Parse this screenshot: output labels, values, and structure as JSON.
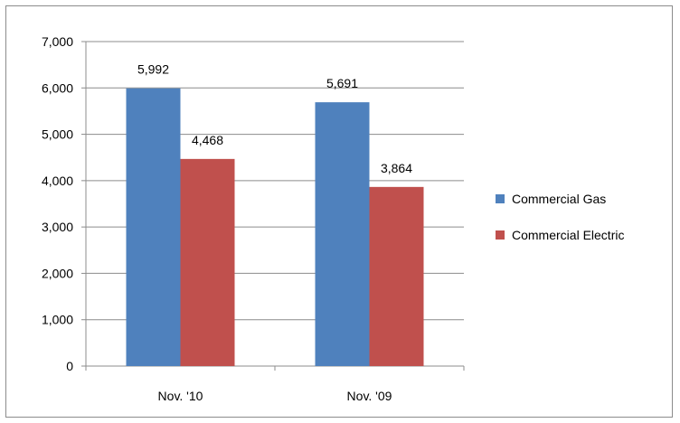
{
  "chart_data": {
    "type": "bar",
    "categories": [
      "Nov. '10",
      "Nov. '09"
    ],
    "series": [
      {
        "name": "Commercial Gas",
        "values": [
          5992,
          5691
        ],
        "labels": [
          "5,992",
          "5,691"
        ],
        "color": "#4F81BD"
      },
      {
        "name": "Commercial Electric",
        "values": [
          4468,
          3864
        ],
        "labels": [
          "4,468",
          "3,864"
        ],
        "color": "#C0504D"
      }
    ],
    "ylim": [
      0,
      7000
    ],
    "yticks": [
      0,
      1000,
      2000,
      3000,
      4000,
      5000,
      6000,
      7000
    ],
    "ytick_labels": [
      "0",
      "1,000",
      "2,000",
      "3,000",
      "4,000",
      "5,000",
      "6,000",
      "7,000"
    ],
    "grid": true,
    "legend_position": "right",
    "title": "",
    "xlabel": "",
    "ylabel": ""
  }
}
